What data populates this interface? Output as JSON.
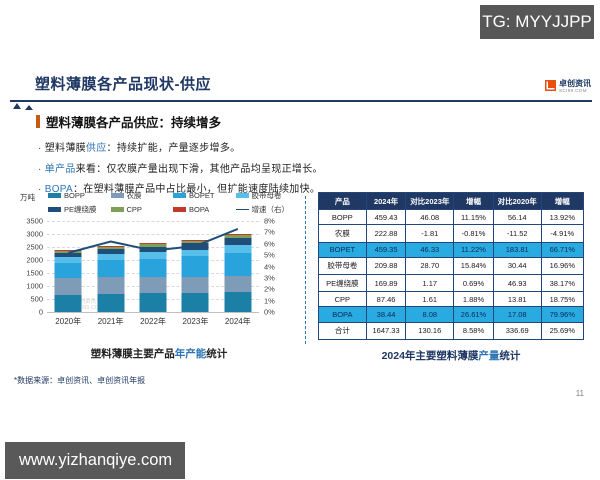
{
  "header": {
    "tg_label": "TG: MYYJJPP"
  },
  "slide": {
    "title": "塑料薄膜各产品现状-供应",
    "logo": {
      "name": "卓创资讯",
      "sub": "SCI99.COM"
    },
    "section_title": "塑料薄膜各产品供应：持续增多",
    "bullets": [
      [
        {
          "text": "塑料薄膜",
          "blue": false
        },
        {
          "text": "供应",
          "blue": true
        },
        {
          "text": "：持续扩能，产量逐步增多。",
          "blue": false
        }
      ],
      [
        {
          "text": "单产品",
          "blue": true
        },
        {
          "text": "来看：仅农膜产量出现下滑，其他产品均呈现正增长。",
          "blue": false
        }
      ],
      [
        {
          "text": "BOPA",
          "blue": true
        },
        {
          "text": "：在塑料薄膜产品中占比最小，但扩能速度陆续加快。",
          "blue": false
        }
      ]
    ],
    "watermark": {
      "line1": "卓创资讯",
      "line2": "SCI99.COM"
    }
  },
  "chart_data": {
    "type": "bar",
    "stacked": true,
    "unit_label": "万吨",
    "categories": [
      "2020年",
      "2021年",
      "2022年",
      "2023年",
      "2024年"
    ],
    "series": [
      {
        "name": "BOPP",
        "color": "#1B7FA6",
        "values": [
          650,
          700,
          720,
          740,
          770
        ]
      },
      {
        "name": "农膜",
        "color": "#7E9BB7",
        "values": [
          650,
          645,
          635,
          625,
          615
        ]
      },
      {
        "name": "BOPET",
        "color": "#29A3DC",
        "values": [
          600,
          650,
          700,
          780,
          900
        ]
      },
      {
        "name": "胶带母卷",
        "color": "#56BEE8",
        "values": [
          200,
          220,
          240,
          260,
          290
        ]
      },
      {
        "name": "PE缠绕膜",
        "color": "#1F4E79",
        "values": [
          180,
          200,
          220,
          240,
          270
        ]
      },
      {
        "name": "CPP",
        "color": "#7FA05A",
        "values": [
          70,
          80,
          85,
          95,
          105
        ]
      },
      {
        "name": "BOPA",
        "color": "#C3392B",
        "values": [
          30,
          35,
          40,
          50,
          65
        ]
      }
    ],
    "line_series": {
      "name": "增速（右）",
      "color": "#1F4E79",
      "values": [
        5.2,
        6.2,
        5.4,
        5.8,
        7.3
      ]
    },
    "ylim": [
      0,
      3500
    ],
    "y2lim": [
      0,
      8
    ],
    "y_ticks_left": [
      "3500",
      "3000",
      "2500",
      "2000",
      "1500",
      "1000",
      "500",
      "0"
    ],
    "y_ticks_right": [
      "8%",
      "7%",
      "6%",
      "5%",
      "4%",
      "3%",
      "2%",
      "1%",
      "0%"
    ],
    "grid": true,
    "legend_position": "top",
    "title": {
      "pre": "塑料薄膜主要产品",
      "highlight": "年产能",
      "post": "统计"
    }
  },
  "table": {
    "headers": [
      "产品",
      "2024年",
      "对比2023年",
      "增幅",
      "对比2020年",
      "增幅"
    ],
    "rows": [
      {
        "cells": [
          "BOPP",
          "459.43",
          "46.08",
          "11.15%",
          "56.14",
          "13.92%"
        ],
        "highlight": false
      },
      {
        "cells": [
          "农膜",
          "222.88",
          "-1.81",
          "-0.81%",
          "-11.52",
          "-4.91%"
        ],
        "highlight": false
      },
      {
        "cells": [
          "BOPET",
          "459.35",
          "46.33",
          "11.22%",
          "183.81",
          "66.71%"
        ],
        "highlight": true
      },
      {
        "cells": [
          "胶带母卷",
          "209.88",
          "28.70",
          "15.84%",
          "30.44",
          "16.96%"
        ],
        "highlight": false
      },
      {
        "cells": [
          "PE缠绕膜",
          "169.89",
          "1.17",
          "0.69%",
          "46.93",
          "38.17%"
        ],
        "highlight": false
      },
      {
        "cells": [
          "CPP",
          "87.46",
          "1.61",
          "1.88%",
          "13.81",
          "18.75%"
        ],
        "highlight": false
      },
      {
        "cells": [
          "BOPA",
          "38.44",
          "8.08",
          "26.61%",
          "17.08",
          "79.96%"
        ],
        "highlight": true
      },
      {
        "cells": [
          "合计",
          "1647.33",
          "130.16",
          "8.58%",
          "336.69",
          "25.69%"
        ],
        "highlight": false
      }
    ],
    "title": {
      "pre": "2024年主要塑料薄膜",
      "highlight": "产量",
      "post": "统计"
    }
  },
  "footer": {
    "source": "*数据来源：卓创资讯、卓创资讯年报",
    "page": "11",
    "website": "www.yizhanqiye.com"
  },
  "colors": {
    "accent_navy": "#203864",
    "accent_orange": "#C55A11",
    "keyword_blue": "#2E75B6",
    "table_header_bg": "#203864",
    "table_highlight_bg": "#29ABE2",
    "box_gray": "#595959"
  }
}
